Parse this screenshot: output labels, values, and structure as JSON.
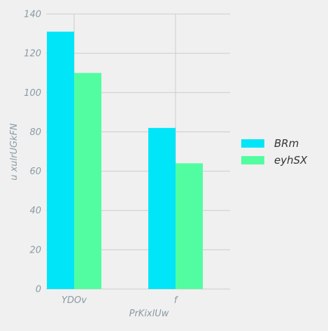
{
  "chart_data": {
    "type": "bar",
    "title": "",
    "xlabel": "PrKixlUw",
    "ylabel": "u xulrUGkFN",
    "categories": [
      "YDOv",
      "f"
    ],
    "series": [
      {
        "name": "BRm",
        "values": [
          131,
          82
        ],
        "color": "#00e5f7"
      },
      {
        "name": "eyhSX",
        "values": [
          110,
          64
        ],
        "color": "#52fda1"
      }
    ],
    "ylim": [
      0,
      140
    ],
    "yticks": [
      0,
      20,
      40,
      60,
      80,
      100,
      120,
      140
    ],
    "grid": true,
    "legend_position": "right"
  }
}
